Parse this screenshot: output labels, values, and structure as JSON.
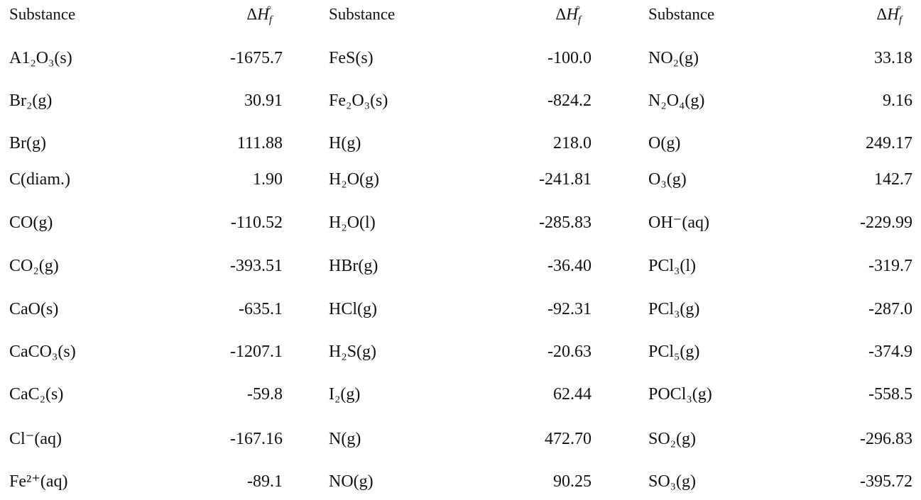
{
  "groups": [
    {
      "header": {
        "substance": "Substance",
        "property": {
          "main_delta": "Δ",
          "main_h": "H",
          "sub": "f",
          "sup": "°"
        }
      },
      "rows": [
        [
          "A1₂O₃(s)",
          "-1675.7"
        ],
        [
          "Br₂(g)",
          "30.91"
        ],
        [
          "Br(g)",
          "111.88"
        ],
        [
          "C(diam.)",
          "1.90"
        ],
        [
          "CO(g)",
          "-110.52"
        ],
        [
          "CO₂(g)",
          "-393.51"
        ],
        [
          "CaO(s)",
          "-635.1"
        ],
        [
          "CaCO₃(s)",
          "-1207.1"
        ],
        [
          "CaC₂(s)",
          "-59.8"
        ],
        [
          "Cl⁻(aq)",
          "-167.16"
        ],
        [
          "Fe²⁺(aq)",
          "-89.1"
        ]
      ]
    },
    {
      "header": {
        "substance": "Substance",
        "property": {
          "main_delta": "Δ",
          "main_h": "H",
          "sub": "f",
          "sup": "°"
        }
      },
      "rows": [
        [
          "FeS(s)",
          "-100.0"
        ],
        [
          "Fe₂O₃(s)",
          "-824.2"
        ],
        [
          "H(g)",
          "218.0"
        ],
        [
          "H₂O(g)",
          "-241.81"
        ],
        [
          "H₂O(l)",
          "-285.83"
        ],
        [
          "HBr(g)",
          "-36.40"
        ],
        [
          "HCl(g)",
          "-92.31"
        ],
        [
          "H₂S(g)",
          "-20.63"
        ],
        [
          "I₂(g)",
          "62.44"
        ],
        [
          "N(g)",
          "472.70"
        ],
        [
          "NO(g)",
          "90.25"
        ]
      ]
    },
    {
      "header": {
        "substance": "Substance",
        "property": {
          "main_delta": "Δ",
          "main_h": "H",
          "sub": "f",
          "sup": "°"
        }
      },
      "rows": [
        [
          "NO₂(g)",
          "33.18"
        ],
        [
          "N₂O₄(g)",
          "9.16"
        ],
        [
          "O(g)",
          "249.17"
        ],
        [
          "O₃(g)",
          "142.7"
        ],
        [
          "OH⁻(aq)",
          "-229.99"
        ],
        [
          "PCl₃(l)",
          "-319.7"
        ],
        [
          "PCl₃(g)",
          "-287.0"
        ],
        [
          "PCl₅(g)",
          "-374.9"
        ],
        [
          "POCl₃(g)",
          "-558.5"
        ],
        [
          "SO₂(g)",
          "-296.83"
        ],
        [
          "SO₃(g)",
          "-395.72"
        ]
      ]
    }
  ]
}
